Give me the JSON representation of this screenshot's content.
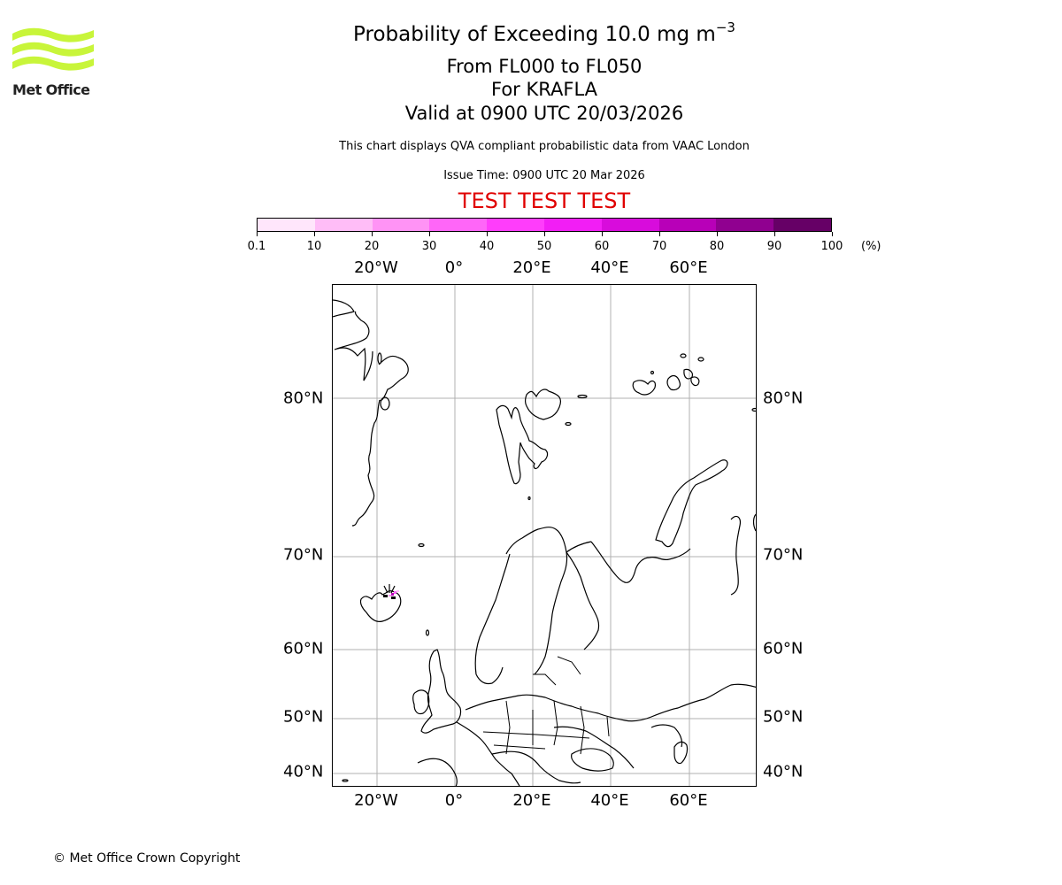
{
  "logo": {
    "text": "Met Office",
    "color": "#c8f53a"
  },
  "header": {
    "title_main": "Probability of Exceeding 10.0 mg m",
    "title_sup": "−3",
    "levels": "From FL000 to FL050",
    "volcano": "For KRAFLA",
    "valid": "Valid at 0900 UTC 20/03/2026",
    "disclaimer": "This chart displays QVA compliant probabilistic data from VAAC London",
    "issue_time": "Issue Time: 0900 UTC 20 Mar 2026",
    "test_banner": "TEST TEST TEST",
    "test_color": "#e00000"
  },
  "colorbar": {
    "unit": "(%)",
    "ticks": [
      "0.1",
      "10",
      "20",
      "30",
      "40",
      "50",
      "60",
      "70",
      "80",
      "90",
      "100"
    ],
    "colors": [
      "#ffe6fb",
      "#ffbdf7",
      "#ff93f5",
      "#ff66f8",
      "#ff3dfb",
      "#f21ef5",
      "#d80cdc",
      "#b800b8",
      "#900090",
      "#660066"
    ]
  },
  "map": {
    "lon_labels": [
      "20°W",
      "0°",
      "20°E",
      "40°E",
      "60°E"
    ],
    "lat_labels": [
      "80°N",
      "70°N",
      "60°N",
      "50°N",
      "40°N"
    ],
    "gridline_color": "#b0b0b0"
  },
  "footer": {
    "copyright": "© Met Office Crown Copyright"
  }
}
